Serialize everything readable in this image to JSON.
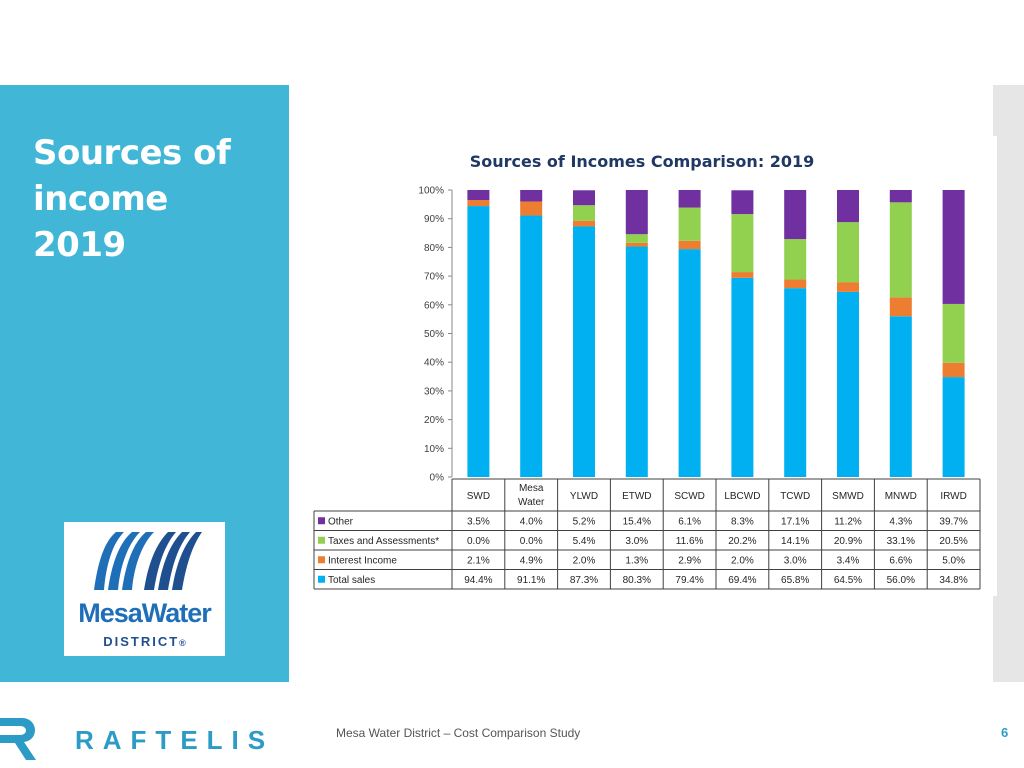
{
  "slide": {
    "title_lines": [
      "Sources of",
      "income",
      "2019"
    ],
    "footer_text": "Mesa Water District – Cost Comparison Study",
    "page_number": "6",
    "brand_text": "RAFTELIS",
    "logo": {
      "word_mesa": "Mesa",
      "word_water": "Water",
      "district": "DISTRICT",
      "registered": "®"
    }
  },
  "colors": {
    "panel": "#41b6d6",
    "Other": "#7030a0",
    "Taxes and Assessments*": "#92d050",
    "Interest Income": "#ed7d31",
    "Total sales": "#00b0f0",
    "brand": "#2c9bc6"
  },
  "chart_data": {
    "type": "bar",
    "stacked": true,
    "title": "Sources of Incomes Comparison: 2019",
    "categories": [
      "SWD",
      "Mesa Water",
      "YLWD",
      "ETWD",
      "SCWD",
      "LBCWD",
      "TCWD",
      "SMWD",
      "MNWD",
      "IRWD"
    ],
    "ylim": [
      0,
      100
    ],
    "yticks": [
      "0%",
      "10%",
      "20%",
      "30%",
      "40%",
      "50%",
      "60%",
      "70%",
      "80%",
      "90%",
      "100%"
    ],
    "series": [
      {
        "name": "Total sales",
        "values": [
          94.4,
          91.1,
          87.3,
          80.3,
          79.4,
          69.4,
          65.8,
          64.5,
          56.0,
          34.8
        ],
        "labels": [
          "94.4%",
          "91.1%",
          "87.3%",
          "80.3%",
          "79.4%",
          "69.4%",
          "65.8%",
          "64.5%",
          "56.0%",
          "34.8%"
        ]
      },
      {
        "name": "Interest Income",
        "values": [
          2.1,
          4.9,
          2.0,
          1.3,
          2.9,
          2.0,
          3.0,
          3.4,
          6.6,
          5.0
        ],
        "labels": [
          "2.1%",
          "4.9%",
          "2.0%",
          "1.3%",
          "2.9%",
          "2.0%",
          "3.0%",
          "3.4%",
          "6.6%",
          "5.0%"
        ]
      },
      {
        "name": "Taxes and Assessments*",
        "values": [
          0.0,
          0.0,
          5.4,
          3.0,
          11.6,
          20.2,
          14.1,
          20.9,
          33.1,
          20.5
        ],
        "labels": [
          "0.0%",
          "0.0%",
          "5.4%",
          "3.0%",
          "11.6%",
          "20.2%",
          "14.1%",
          "20.9%",
          "33.1%",
          "20.5%"
        ]
      },
      {
        "name": "Other",
        "values": [
          3.5,
          4.0,
          5.2,
          15.4,
          6.1,
          8.3,
          17.1,
          11.2,
          4.3,
          39.7
        ],
        "labels": [
          "3.5%",
          "4.0%",
          "5.2%",
          "15.4%",
          "6.1%",
          "8.3%",
          "17.1%",
          "11.2%",
          "4.3%",
          "39.7%"
        ]
      }
    ],
    "table_row_order": [
      "Other",
      "Taxes and Assessments*",
      "Interest Income",
      "Total sales"
    ],
    "legend": "data-table",
    "grid": false
  }
}
